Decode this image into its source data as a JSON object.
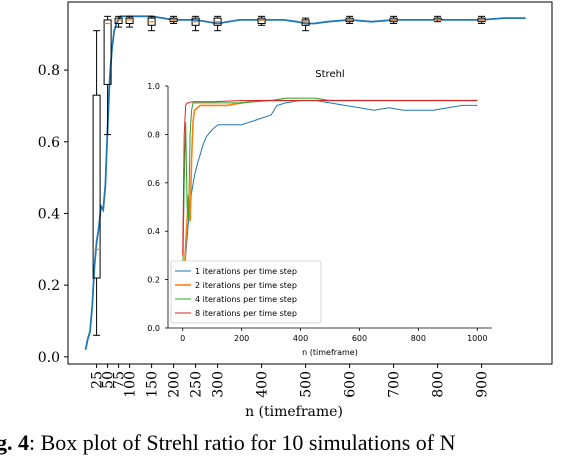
{
  "caption": {
    "label": "g. 4",
    "text": ": Box plot of Strehl ratio for 10 simulations of N"
  },
  "chart_data": [
    {
      "type": "line",
      "id": "main",
      "title": "",
      "xlabel": "n (timeframe)",
      "ylabel": "",
      "xlim": [
        -40,
        1060
      ],
      "ylim": [
        -0.02,
        0.99
      ],
      "x_ticks": [
        25,
        50,
        75,
        100,
        150,
        200,
        250,
        300,
        400,
        500,
        600,
        700,
        800,
        900
      ],
      "y_ticks": [
        0.0,
        0.2,
        0.4,
        0.6,
        0.8
      ],
      "grid": false,
      "series": [
        {
          "color": "#1f77b4",
          "x": [
            0,
            5,
            10,
            15,
            20,
            25,
            30,
            35,
            40,
            45,
            50,
            55,
            60,
            65,
            70,
            75,
            80,
            90,
            100,
            120,
            150,
            200,
            250,
            300,
            350,
            400,
            450,
            480,
            500,
            520,
            550,
            600,
            650,
            700,
            750,
            800,
            850,
            900,
            950,
            1000
          ],
          "y": [
            0.02,
            0.05,
            0.07,
            0.14,
            0.25,
            0.32,
            0.36,
            0.42,
            0.41,
            0.48,
            0.64,
            0.78,
            0.86,
            0.91,
            0.93,
            0.94,
            0.95,
            0.95,
            0.95,
            0.95,
            0.95,
            0.94,
            0.94,
            0.93,
            0.94,
            0.94,
            0.94,
            0.935,
            0.93,
            0.93,
            0.935,
            0.94,
            0.935,
            0.94,
            0.94,
            0.94,
            0.94,
            0.94,
            0.945,
            0.945
          ]
        }
      ],
      "boxes": [
        {
          "x": 25,
          "q1": 0.22,
          "median": 0.3,
          "q3": 0.73,
          "whisker_low": 0.06,
          "whisker_high": 0.91
        },
        {
          "x": 50,
          "q1": 0.76,
          "median": 0.93,
          "q3": 0.94,
          "whisker_low": 0.62,
          "whisker_high": 0.95
        },
        {
          "x": 75,
          "q1": 0.93,
          "median": 0.94,
          "q3": 0.945,
          "whisker_low": 0.92,
          "whisker_high": 0.95
        },
        {
          "x": 100,
          "q1": 0.93,
          "median": 0.94,
          "q3": 0.945,
          "whisker_low": 0.92,
          "whisker_high": 0.95
        },
        {
          "x": 150,
          "q1": 0.925,
          "median": 0.935,
          "q3": 0.945,
          "whisker_low": 0.91,
          "whisker_high": 0.95
        },
        {
          "x": 200,
          "q1": 0.935,
          "median": 0.94,
          "q3": 0.945,
          "whisker_low": 0.93,
          "whisker_high": 0.95
        },
        {
          "x": 250,
          "q1": 0.925,
          "median": 0.935,
          "q3": 0.945,
          "whisker_low": 0.91,
          "whisker_high": 0.95
        },
        {
          "x": 300,
          "q1": 0.925,
          "median": 0.935,
          "q3": 0.945,
          "whisker_low": 0.91,
          "whisker_high": 0.95
        },
        {
          "x": 400,
          "q1": 0.93,
          "median": 0.94,
          "q3": 0.945,
          "whisker_low": 0.925,
          "whisker_high": 0.95
        },
        {
          "x": 500,
          "q1": 0.925,
          "median": 0.935,
          "q3": 0.94,
          "whisker_low": 0.91,
          "whisker_high": 0.945
        },
        {
          "x": 600,
          "q1": 0.935,
          "median": 0.94,
          "q3": 0.945,
          "whisker_low": 0.93,
          "whisker_high": 0.95
        },
        {
          "x": 700,
          "q1": 0.935,
          "median": 0.94,
          "q3": 0.945,
          "whisker_low": 0.93,
          "whisker_high": 0.95
        },
        {
          "x": 800,
          "q1": 0.94,
          "median": 0.94,
          "q3": 0.945,
          "whisker_low": 0.935,
          "whisker_high": 0.95
        },
        {
          "x": 900,
          "q1": 0.935,
          "median": 0.94,
          "q3": 0.945,
          "whisker_low": 0.93,
          "whisker_high": 0.95
        }
      ]
    },
    {
      "type": "line",
      "id": "inset",
      "title": "Strehl",
      "xlabel": "n (timeframe)",
      "ylabel": "",
      "xlim": [
        -50,
        1050
      ],
      "ylim": [
        0.0,
        1.0
      ],
      "x_ticks": [
        0,
        200,
        400,
        600,
        800,
        1000
      ],
      "y_ticks": [
        0.0,
        0.2,
        0.4,
        0.6,
        0.8,
        1.0
      ],
      "grid": false,
      "legend": "lower-left",
      "series": [
        {
          "name": "1 iterations per time step",
          "color": "#1f77b4",
          "x": [
            0,
            10,
            20,
            30,
            40,
            50,
            60,
            70,
            80,
            100,
            120,
            150,
            200,
            250,
            300,
            320,
            350,
            400,
            450,
            500,
            550,
            600,
            650,
            700,
            750,
            800,
            850,
            900,
            950,
            1000
          ],
          "y": [
            0.14,
            0.3,
            0.45,
            0.56,
            0.63,
            0.68,
            0.72,
            0.76,
            0.79,
            0.82,
            0.84,
            0.84,
            0.84,
            0.86,
            0.88,
            0.92,
            0.93,
            0.94,
            0.94,
            0.93,
            0.92,
            0.91,
            0.9,
            0.91,
            0.9,
            0.9,
            0.9,
            0.91,
            0.92,
            0.92
          ]
        },
        {
          "name": "2 iterations per time step",
          "color": "#ff7f0e",
          "x": [
            0,
            10,
            20,
            25,
            30,
            35,
            40,
            50,
            60,
            80,
            100,
            150,
            200,
            250,
            300,
            350,
            400,
            500,
            600,
            700,
            800,
            900,
            1000
          ],
          "y": [
            0.1,
            0.35,
            0.55,
            0.44,
            0.7,
            0.85,
            0.9,
            0.91,
            0.92,
            0.92,
            0.92,
            0.92,
            0.93,
            0.94,
            0.94,
            0.94,
            0.94,
            0.94,
            0.94,
            0.94,
            0.94,
            0.94,
            0.94
          ]
        },
        {
          "name": "4 iterations per time step",
          "color": "#2ca02c",
          "x": [
            0,
            5,
            10,
            15,
            20,
            25,
            30,
            35,
            40,
            50,
            100,
            200,
            300,
            350,
            400,
            450,
            500,
            600,
            700,
            800,
            900,
            1000
          ],
          "y": [
            0.2,
            0.6,
            0.85,
            0.5,
            0.45,
            0.8,
            0.9,
            0.93,
            0.93,
            0.93,
            0.93,
            0.93,
            0.94,
            0.95,
            0.95,
            0.95,
            0.94,
            0.94,
            0.94,
            0.94,
            0.94,
            0.94
          ]
        },
        {
          "name": "8 iterations per time step",
          "color": "#d62728",
          "x": [
            0,
            5,
            10,
            15,
            20,
            30,
            50,
            100,
            200,
            300,
            400,
            500,
            600,
            700,
            800,
            900,
            1000
          ],
          "y": [
            0.3,
            0.8,
            0.92,
            0.93,
            0.93,
            0.935,
            0.935,
            0.935,
            0.94,
            0.94,
            0.94,
            0.94,
            0.94,
            0.94,
            0.94,
            0.94,
            0.94
          ]
        }
      ]
    }
  ]
}
